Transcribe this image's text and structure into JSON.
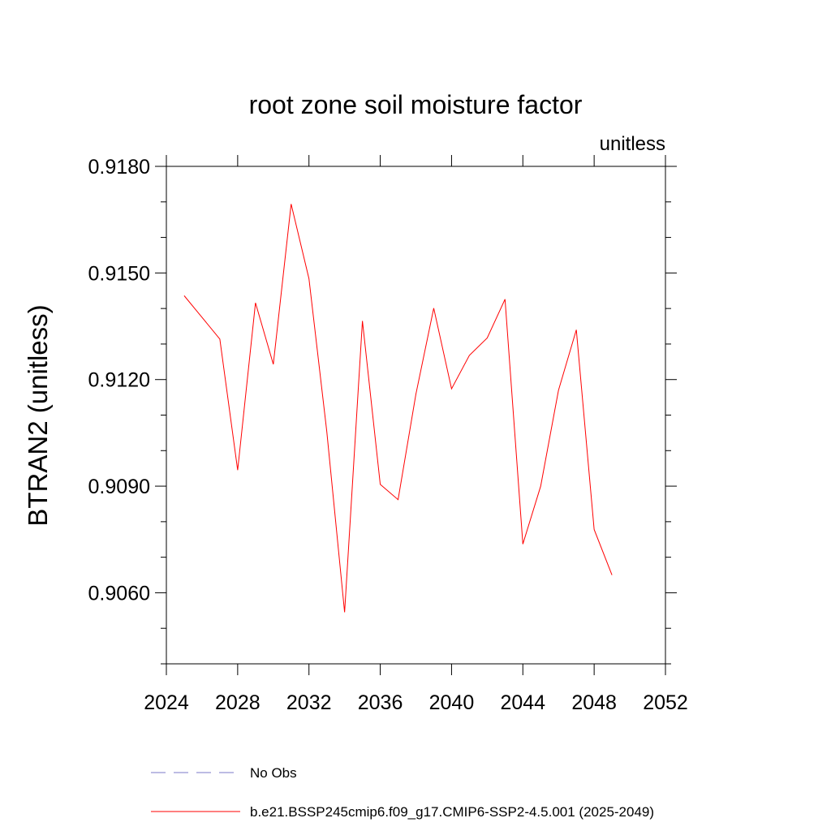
{
  "chart_data": {
    "type": "line",
    "title": "root zone soil moisture factor",
    "units_label": "unitless",
    "xlabel": "",
    "ylabel": "BTRAN2  (unitless)",
    "xlim": [
      2024,
      2052
    ],
    "ylim": [
      0.904,
      0.918
    ],
    "x_ticks": [
      2024,
      2028,
      2032,
      2036,
      2040,
      2044,
      2048,
      2052
    ],
    "x_tick_labels": [
      "2024",
      "2028",
      "2032",
      "2036",
      "2040",
      "2044",
      "2048",
      "2052"
    ],
    "y_ticks": [
      0.906,
      0.909,
      0.912,
      0.915,
      0.918
    ],
    "y_tick_labels": [
      "0.9060",
      "0.9090",
      "0.9120",
      "0.9150",
      "0.9180"
    ],
    "grid": false,
    "legend_position": "bottom",
    "series": [
      {
        "name": "b.e21.BSSP245cmip6.f09_g17.CMIP6-SSP2-4.5.001 (2025-2049)",
        "color": "#ff0000",
        "style": "solid",
        "x": [
          2025,
          2026,
          2027,
          2028,
          2029,
          2030,
          2031,
          2032,
          2033,
          2034,
          2035,
          2036,
          2037,
          2038,
          2039,
          2040,
          2041,
          2042,
          2043,
          2044,
          2045,
          2046,
          2047,
          2048,
          2049
        ],
        "y": [
          0.91436,
          0.91375,
          0.91314,
          0.90945,
          0.91416,
          0.91243,
          0.91694,
          0.91484,
          0.91054,
          0.90545,
          0.91365,
          0.90905,
          0.90862,
          0.91159,
          0.91401,
          0.91174,
          0.91268,
          0.91317,
          0.91426,
          0.90737,
          0.909,
          0.9117,
          0.9134,
          0.90778,
          0.9065
        ]
      },
      {
        "name": "No Obs",
        "color": "#7b78c8",
        "style": "dashed",
        "x": [],
        "y": []
      }
    ]
  }
}
